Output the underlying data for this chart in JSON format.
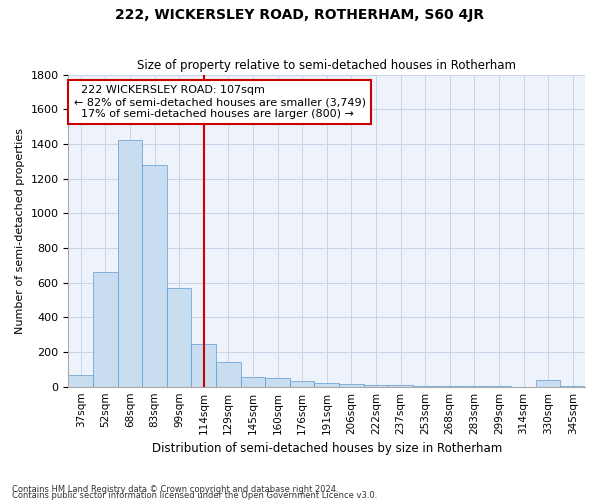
{
  "title": "222, WICKERSLEY ROAD, ROTHERHAM, S60 4JR",
  "subtitle": "Size of property relative to semi-detached houses in Rotherham",
  "xlabel": "Distribution of semi-detached houses by size in Rotherham",
  "ylabel": "Number of semi-detached properties",
  "property_label": "222 WICKERSLEY ROAD: 107sqm",
  "pct_smaller": 82,
  "pct_larger": 17,
  "n_smaller": 3749,
  "n_larger": 800,
  "bar_color": "#c8ddf0",
  "bar_edge_color": "#5b9bd5",
  "vline_color": "#cc0000",
  "grid_color": "#c8d4e8",
  "background_color": "#eef2fa",
  "categories": [
    "37sqm",
    "52sqm",
    "68sqm",
    "83sqm",
    "99sqm",
    "114sqm",
    "129sqm",
    "145sqm",
    "160sqm",
    "176sqm",
    "191sqm",
    "206sqm",
    "222sqm",
    "237sqm",
    "253sqm",
    "268sqm",
    "283sqm",
    "299sqm",
    "314sqm",
    "330sqm",
    "345sqm"
  ],
  "values": [
    65,
    660,
    1420,
    1280,
    570,
    245,
    140,
    55,
    50,
    30,
    20,
    15,
    10,
    8,
    5,
    5,
    5,
    3,
    0,
    40,
    2
  ],
  "ylim": [
    0,
    1800
  ],
  "yticks": [
    0,
    200,
    400,
    600,
    800,
    1000,
    1200,
    1400,
    1600,
    1800
  ],
  "vline_x": 5.03,
  "footnote1": "Contains HM Land Registry data © Crown copyright and database right 2024.",
  "footnote2": "Contains public sector information licensed under the Open Government Licence v3.0."
}
